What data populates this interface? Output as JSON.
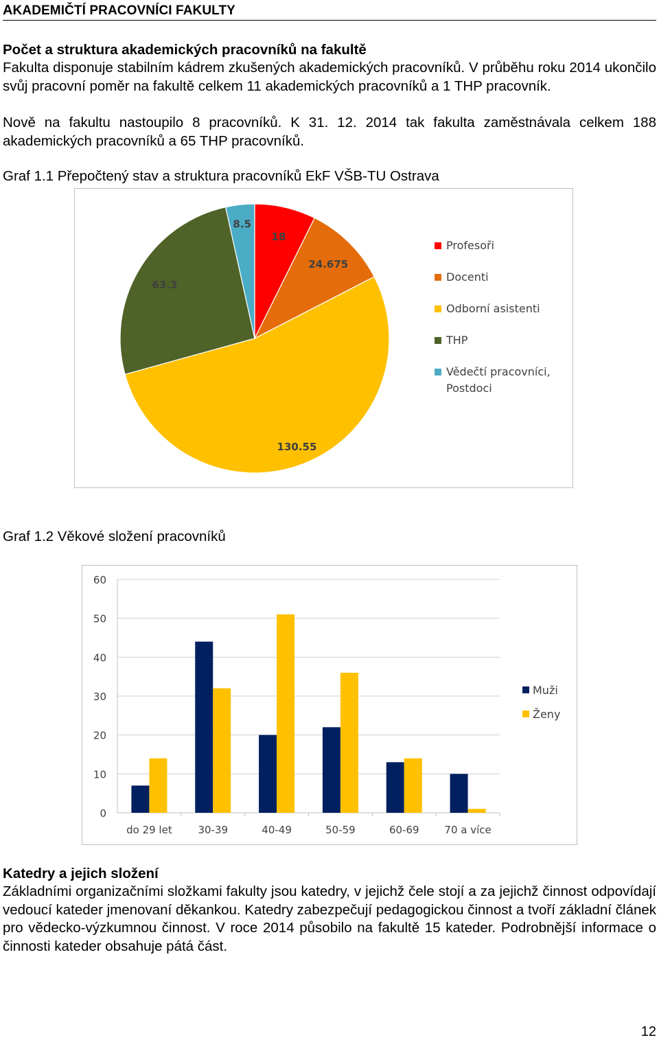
{
  "header": {
    "title_first": "A",
    "title_rest": "KADEMIČTÍ PRACOVNÍCI FAKULTY"
  },
  "section1": {
    "heading": "Počet a struktura akademických pracovníků na fakultě",
    "p1": "Fakulta disponuje stabilním kádrem zkušených akademických pracovníků. V průběhu roku 2014 ukončilo svůj pracovní poměr na fakultě celkem 11 akademických pracovníků a 1 THP pracovník.",
    "p2": "Nově na fakultu nastoupilo 8 pracovníků. K  31. 12. 2014 tak fakulta zaměstnávala celkem 188 akademických pracovníků a 65 THP pracovníků."
  },
  "graph1": {
    "caption": "Graf 1.1 Přepočtený stav a struktura pracovníků EkF VŠB-TU Ostrava"
  },
  "graph2": {
    "caption": "Graf 1.2 Věkové složení pracovníků"
  },
  "section2": {
    "heading": "Katedry a jejich složení",
    "p1": "Základními organizačními složkami fakulty jsou katedry, v jejichž čele stojí a za jejichž činnost odpovídají vedoucí kateder jmenovaní děkankou. Katedry zabezpečují pedagogickou činnost a tvoří základní článek pro vědecko-výzkumnou činnost. V roce 2014 působilo na fakultě 15 kateder. Podrobnější informace o činnosti kateder obsahuje pátá část."
  },
  "page_number": "12",
  "chart_data": [
    {
      "type": "pie",
      "slices": [
        {
          "name": "Profesoři",
          "value": 18,
          "label": "18",
          "color": "#ff0000"
        },
        {
          "name": "Docenti",
          "value": 24.675,
          "label": "24.675",
          "color": "#e46c0a"
        },
        {
          "name": "Odborní asistenti",
          "value": 130.55,
          "label": "130.55",
          "color": "#ffc000"
        },
        {
          "name": "THP",
          "value": 63.3,
          "label": "63.3",
          "color": "#4f6228"
        },
        {
          "name": "Vědečtí pracovníci, Postdoci",
          "name_lines": [
            "Vědečtí pracovníci,",
            "Postdoci"
          ],
          "value": 8.5,
          "label": "8.5",
          "color": "#4bacc6"
        }
      ],
      "legend_position": "right"
    },
    {
      "type": "bar",
      "categories": [
        "do 29 let",
        "30-39",
        "40-49",
        "50-59",
        "60-69",
        "70 a více"
      ],
      "series": [
        {
          "name": "Muži",
          "values": [
            7,
            44,
            20,
            22,
            13,
            10
          ],
          "color": "#002060"
        },
        {
          "name": "Ženy",
          "values": [
            14,
            32,
            51,
            36,
            14,
            1
          ],
          "color": "#ffc000"
        }
      ],
      "ylim": [
        0,
        60
      ],
      "yticks": [
        0,
        10,
        20,
        30,
        40,
        50,
        60
      ],
      "grid": true,
      "legend_position": "right"
    }
  ]
}
